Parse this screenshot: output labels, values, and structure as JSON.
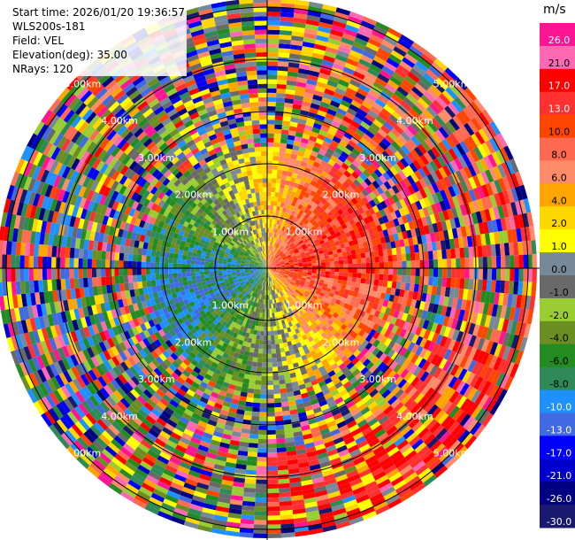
{
  "header": {
    "start_time": "Start time: 2026/01/20 19:36:57",
    "instrument": "WLS200s-181",
    "field": "Field: VEL",
    "elevation": "Elevation(deg): 35.00",
    "nrays": "NRays: 120"
  },
  "chart_data": {
    "type": "ppi-polar",
    "field": "VEL",
    "nrays": 120,
    "elevation_deg": 35.0,
    "range_rings_km": [
      "1.00km",
      "2.00km",
      "3.00km",
      "4.00km",
      "5.00km"
    ],
    "colorbar": {
      "unit": "m/s",
      "ticks": [
        "26.0",
        "21.0",
        "17.0",
        "13.0",
        "10.0",
        "8.0",
        "6.0",
        "4.0",
        "2.0",
        "1.0",
        "0.0",
        "-1.0",
        "-2.0",
        "-4.0",
        "-6.0",
        "-8.0",
        "-10.0",
        "-13.0",
        "-17.0",
        "-21.0",
        "-26.0",
        "-30.0"
      ],
      "colors": [
        "#ff1493",
        "#ff69b4",
        "#ff0000",
        "#ff3030",
        "#ff4500",
        "#ff6a50",
        "#ff8c69",
        "#ffa500",
        "#ffd700",
        "#ffff00",
        "#778899",
        "#696969",
        "#9acd32",
        "#6b8e23",
        "#228b22",
        "#2e8b57",
        "#1e90ff",
        "#4169e1",
        "#0000ff",
        "#0000cd",
        "#000080",
        "#191970"
      ]
    }
  }
}
